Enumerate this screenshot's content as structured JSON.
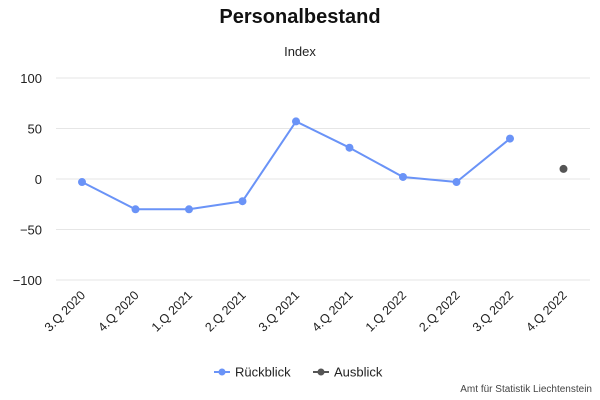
{
  "title": "Personalbestand",
  "subtitle": "Index",
  "credit": "Amt für Statistik Liechtenstein",
  "colors": {
    "rueckblick": "#6a93f7",
    "ausblick": "#555555",
    "grid": "#e6e6e6"
  },
  "chart_data": {
    "type": "line",
    "categories": [
      "3.Q 2020",
      "4.Q 2020",
      "1.Q 2021",
      "2.Q 2021",
      "3.Q 2021",
      "4.Q 2021",
      "1.Q 2022",
      "2.Q 2022",
      "3.Q 2022",
      "4.Q 2022"
    ],
    "y_ticks": [
      100,
      50,
      0,
      -50,
      -100
    ],
    "ylim": [
      -100,
      100
    ],
    "grid": true,
    "legend_position": "bottom",
    "series": [
      {
        "name": "Rückblick",
        "color": "#6a93f7",
        "values": [
          -3,
          -30,
          -30,
          -22,
          57,
          31,
          2,
          -3,
          40,
          null
        ]
      },
      {
        "name": "Ausblick",
        "color": "#555555",
        "values": [
          null,
          null,
          null,
          null,
          null,
          null,
          null,
          null,
          null,
          10
        ]
      }
    ]
  }
}
